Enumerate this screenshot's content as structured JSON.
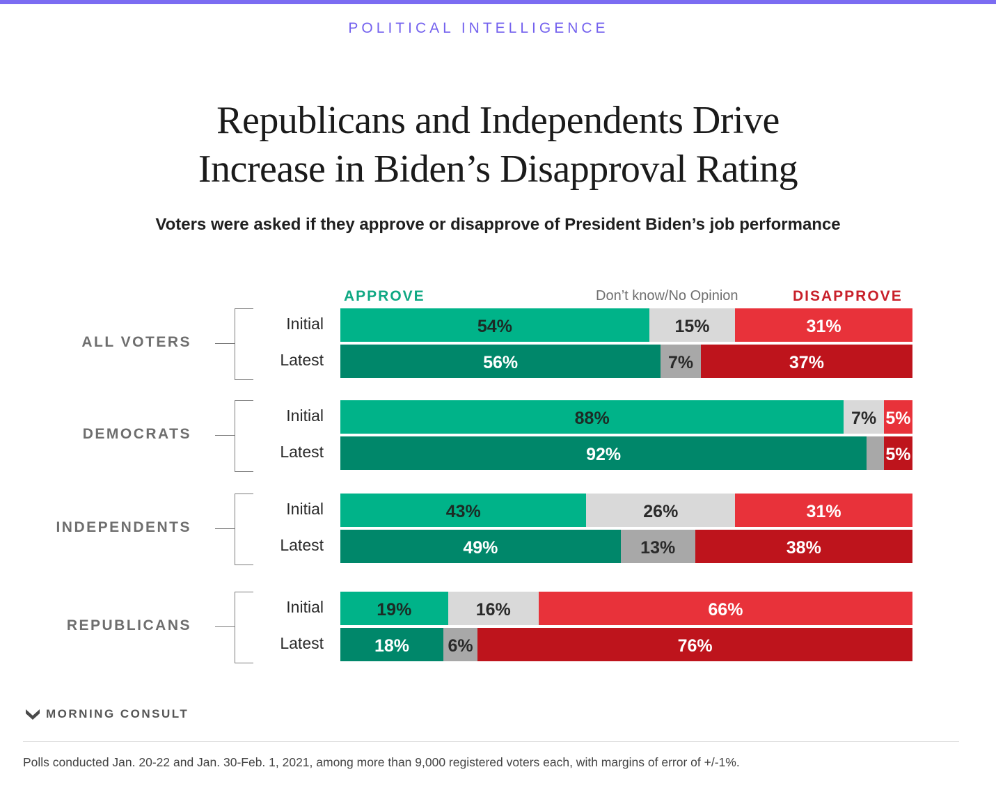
{
  "header": {
    "kicker": "POLITICAL INTELLIGENCE"
  },
  "title_lines": [
    "Republicans and Independents Drive",
    "Increase in Biden’s Disapproval Rating"
  ],
  "subtitle": "Voters were asked if they approve or disapprove of President Biden’s job performance",
  "legend": {
    "approve": "APPROVE",
    "neutral": "Don’t know/No Opinion",
    "disapprove": "DISAPPROVE"
  },
  "colors": {
    "approve_initial": "#00b389",
    "approve_latest": "#00876a",
    "neutral_initial": "#d9d9d9",
    "neutral_latest": "#a8a8a8",
    "disapprove_initial": "#e8323a",
    "disapprove_latest": "#be141c",
    "kicker": "#7462ee",
    "topbar": "#7b6cf2"
  },
  "chart_data": {
    "type": "bar",
    "orientation": "horizontal-stacked-100",
    "title": "Republicans and Independents Drive Increase in Biden’s Disapproval Rating",
    "subtitle": "Voters were asked if they approve or disapprove of President Biden’s job performance",
    "series_names": [
      "APPROVE",
      "Don’t know/No Opinion",
      "DISAPPROVE"
    ],
    "groups": [
      {
        "label": "ALL VOTERS",
        "rows": [
          {
            "label": "Initial",
            "values": [
              54,
              15,
              31
            ],
            "labels": [
              "54%",
              "15%",
              "31%"
            ]
          },
          {
            "label": "Latest",
            "values": [
              56,
              7,
              37
            ],
            "labels": [
              "56%",
              "7%",
              "37%"
            ]
          }
        ]
      },
      {
        "label": "DEMOCRATS",
        "rows": [
          {
            "label": "Initial",
            "values": [
              88,
              7,
              5
            ],
            "labels": [
              "88%",
              "7%",
              "5%"
            ]
          },
          {
            "label": "Latest",
            "values": [
              92,
              3,
              5
            ],
            "labels": [
              "92%",
              "",
              "5%"
            ]
          }
        ]
      },
      {
        "label": "INDEPENDENTS",
        "rows": [
          {
            "label": "Initial",
            "values": [
              43,
              26,
              31
            ],
            "labels": [
              "43%",
              "26%",
              "31%"
            ]
          },
          {
            "label": "Latest",
            "values": [
              49,
              13,
              38
            ],
            "labels": [
              "49%",
              "13%",
              "38%"
            ]
          }
        ]
      },
      {
        "label": "REPUBLICANS",
        "rows": [
          {
            "label": "Initial",
            "values": [
              19,
              16,
              66
            ],
            "labels": [
              "19%",
              "16%",
              "66%"
            ]
          },
          {
            "label": "Latest",
            "values": [
              18,
              6,
              76
            ],
            "labels": [
              "18%",
              "6%",
              "76%"
            ]
          }
        ]
      }
    ],
    "legend_position": "top",
    "grid": false
  },
  "footer": {
    "brand": "MORNING CONSULT",
    "note": "Polls conducted Jan. 20-22 and Jan. 30-Feb. 1, 2021, among more than 9,000 registered voters each, with margins of error of +/-1%."
  }
}
